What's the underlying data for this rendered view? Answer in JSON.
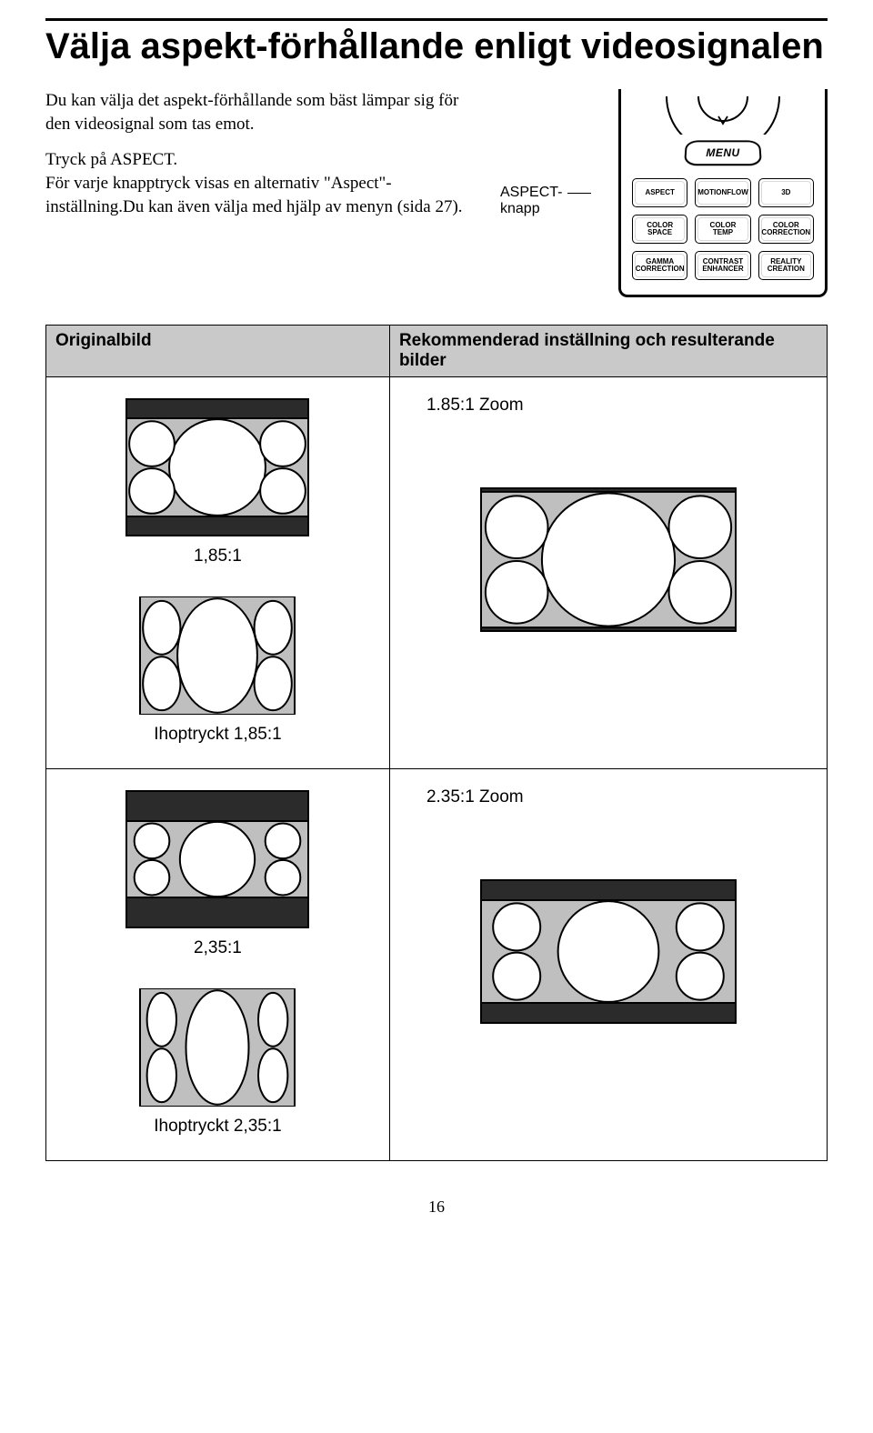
{
  "title": "Välja aspekt-förhållande enligt videosignalen",
  "intro": {
    "p1": "Du kan välja det aspekt-förhållande som bäst lämpar sig för den videosignal som tas emot.",
    "p2": "Tryck på ASPECT.",
    "p3": "För varje knapptryck visas en alternativ \"Aspect\"-inställning.Du kan även välja med hjälp av menyn (sida 27)."
  },
  "aspect_pointer": {
    "line1": "ASPECT-",
    "line2": "knapp"
  },
  "remote": {
    "menu_label": "MENU",
    "buttons": [
      "ASPECT",
      "MOTIONFLOW",
      "3D",
      "COLOR\nSPACE",
      "COLOR\nTEMP",
      "COLOR\nCORRECTION",
      "GAMMA\nCORRECTION",
      "CONTRAST\nENHANCER",
      "REALITY\nCREATION"
    ]
  },
  "table": {
    "header_left": "Originalbild",
    "header_right": "Rekommenderad inställning och resulterande bilder",
    "row1": {
      "left_labels": [
        "1,85:1",
        "Ihoptryckt 1,85:1"
      ],
      "right_label": "1.85:1 Zoom"
    },
    "row2": {
      "left_labels": [
        "2,35:1",
        "Ihoptryckt 2,35:1"
      ],
      "right_label": "2.35:1 Zoom"
    }
  },
  "page_number": "16",
  "figures": {
    "fig_4x3_lbox_185": {
      "outer_w": 200,
      "outer_h": 150,
      "inner_h_ratio": 0.72,
      "side_circles": true,
      "color_gray": "#bfbfc0"
    },
    "fig_4x3_squeezed_185": {
      "outer_w": 170,
      "outer_h": 128,
      "inner_h_ratio": 1.0,
      "squeezed": true,
      "color_gray": "#bfbfc0"
    },
    "fig_16x9_185": {
      "outer_w": 280,
      "outer_h": 157,
      "inner_h_ratio": 0.95,
      "side_circles": true,
      "color_gray": "#bfbfc0"
    },
    "fig_4x3_lbox_235": {
      "outer_w": 200,
      "outer_h": 150,
      "inner_h_ratio": 0.56,
      "side_circles": true,
      "color_gray": "#bfbfc0"
    },
    "fig_4x3_squeezed_235": {
      "outer_w": 170,
      "outer_h": 128,
      "inner_h_ratio": 1.0,
      "squeezed": true,
      "extra_squeeze": true,
      "color_gray": "#bfbfc0"
    },
    "fig_16x9_235": {
      "outer_w": 280,
      "outer_h": 157,
      "inner_h_ratio": 0.72,
      "side_circles": true,
      "color_gray": "#bfbfc0"
    }
  },
  "colors": {
    "gray": "#bfbfc0",
    "header_gray": "#c9c9c9",
    "black": "#000000",
    "white": "#ffffff"
  }
}
